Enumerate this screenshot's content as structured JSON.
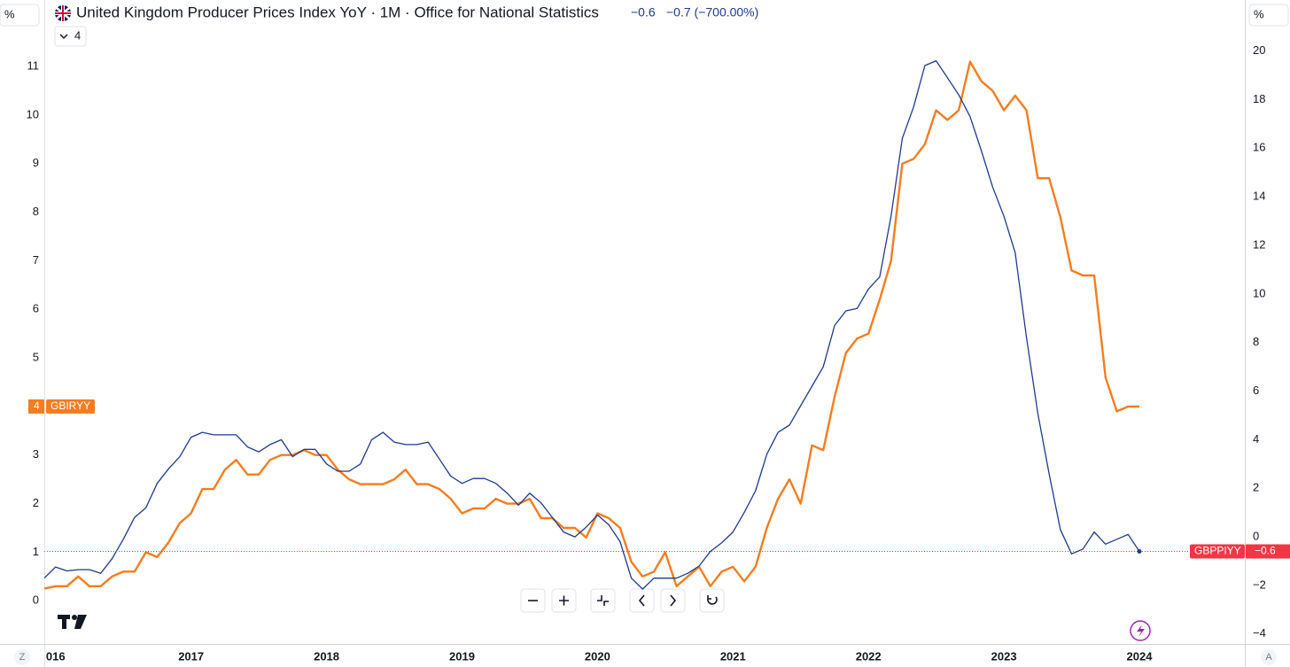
{
  "chart_data": {
    "type": "line",
    "title": "United Kingdom Producer Prices Index YoY · 1M · Office for National Statistics",
    "last_value": "−0.6",
    "change": "−0.7 (−700.00%)",
    "collapsed_count": 4,
    "axis_unit": "%",
    "corner_left": "Z",
    "corner_right": "A",
    "categories": [
      null,
      "016",
      null,
      null,
      null,
      null,
      null,
      null,
      null,
      null,
      null,
      null,
      null,
      "2017",
      null,
      null,
      null,
      null,
      null,
      null,
      null,
      null,
      null,
      null,
      null,
      "2018",
      null,
      null,
      null,
      null,
      null,
      null,
      null,
      null,
      null,
      null,
      null,
      "2019",
      null,
      null,
      null,
      null,
      null,
      null,
      null,
      null,
      null,
      null,
      null,
      "2020",
      null,
      null,
      null,
      null,
      null,
      null,
      null,
      null,
      null,
      null,
      null,
      "2021",
      null,
      null,
      null,
      null,
      null,
      null,
      null,
      null,
      null,
      null,
      null,
      "2022",
      null,
      null,
      null,
      null,
      null,
      null,
      null,
      null,
      null,
      null,
      null,
      "2023",
      null,
      null,
      null,
      null,
      null,
      null,
      null,
      null,
      null,
      null,
      null,
      "2024"
    ],
    "series": [
      {
        "name": "GBIRYY",
        "color": "#f57c1f",
        "axis": "y",
        "values": [
          0.25,
          0.3,
          0.3,
          0.5,
          0.3,
          0.3,
          0.5,
          0.6,
          0.6,
          1.0,
          0.9,
          1.2,
          1.6,
          1.8,
          2.3,
          2.3,
          2.7,
          2.9,
          2.6,
          2.6,
          2.9,
          3.0,
          3.0,
          3.1,
          3.0,
          3.0,
          2.7,
          2.5,
          2.4,
          2.4,
          2.4,
          2.5,
          2.7,
          2.4,
          2.4,
          2.3,
          2.1,
          1.8,
          1.9,
          1.9,
          2.1,
          2.0,
          2.0,
          2.1,
          1.7,
          1.7,
          1.5,
          1.5,
          1.3,
          1.8,
          1.7,
          1.5,
          0.8,
          0.5,
          0.6,
          1.0,
          0.3,
          0.5,
          0.7,
          0.3,
          0.6,
          0.7,
          0.4,
          0.7,
          1.5,
          2.1,
          2.5,
          2.0,
          3.2,
          3.1,
          4.2,
          5.1,
          5.4,
          5.5,
          6.2,
          7.0,
          9.0,
          9.1,
          9.4,
          10.1,
          9.9,
          10.1,
          11.1,
          10.7,
          10.5,
          10.1,
          10.4,
          10.1,
          8.7,
          8.7,
          7.9,
          6.8,
          6.7,
          6.7,
          4.6,
          3.9,
          4.0,
          4.0
        ]
      },
      {
        "name": "GBPPIYY",
        "color": "#1e3a8a",
        "axis": "y2",
        "values": [
          -1.7,
          -1.24,
          -1.4,
          -1.35,
          -1.35,
          -1.5,
          -0.9,
          -0.1,
          0.8,
          1.2,
          2.2,
          2.8,
          3.3,
          4.1,
          4.3,
          4.2,
          4.2,
          4.2,
          3.7,
          3.5,
          3.8,
          4.0,
          3.3,
          3.6,
          3.6,
          3.0,
          2.7,
          2.7,
          3.0,
          4.0,
          4.3,
          3.9,
          3.8,
          3.8,
          3.9,
          3.2,
          2.5,
          2.2,
          2.4,
          2.4,
          2.2,
          1.8,
          1.3,
          1.8,
          1.4,
          0.8,
          0.2,
          0.0,
          0.4,
          0.9,
          0.5,
          -0.2,
          -1.7,
          -2.15,
          -1.7,
          -1.7,
          -1.7,
          -1.5,
          -1.2,
          -0.6,
          -0.25,
          0.2,
          1.0,
          1.9,
          3.4,
          4.3,
          4.6,
          5.4,
          6.2,
          7.0,
          8.7,
          9.3,
          9.4,
          10.2,
          10.7,
          13.2,
          16.4,
          17.7,
          19.4,
          19.6,
          18.9,
          18.2,
          17.3,
          15.9,
          14.4,
          13.2,
          11.7,
          8.2,
          5.1,
          2.6,
          0.3,
          -0.7,
          -0.5,
          0.2,
          -0.3,
          -0.1,
          0.1,
          -0.6
        ]
      }
    ],
    "ylim": [
      -0.89,
      12.37
    ],
    "yticks": [
      0,
      1,
      2,
      3,
      4,
      5,
      6,
      7,
      8,
      9,
      10,
      11
    ],
    "y2lim": [
      -4.41,
      22.1
    ],
    "y2ticks": [
      {
        "value": -4,
        "label": "−4"
      },
      {
        "value": -2,
        "label": "−2"
      },
      0,
      2,
      4,
      6,
      8,
      10,
      12,
      14,
      16,
      18,
      20
    ],
    "grid": false
  }
}
